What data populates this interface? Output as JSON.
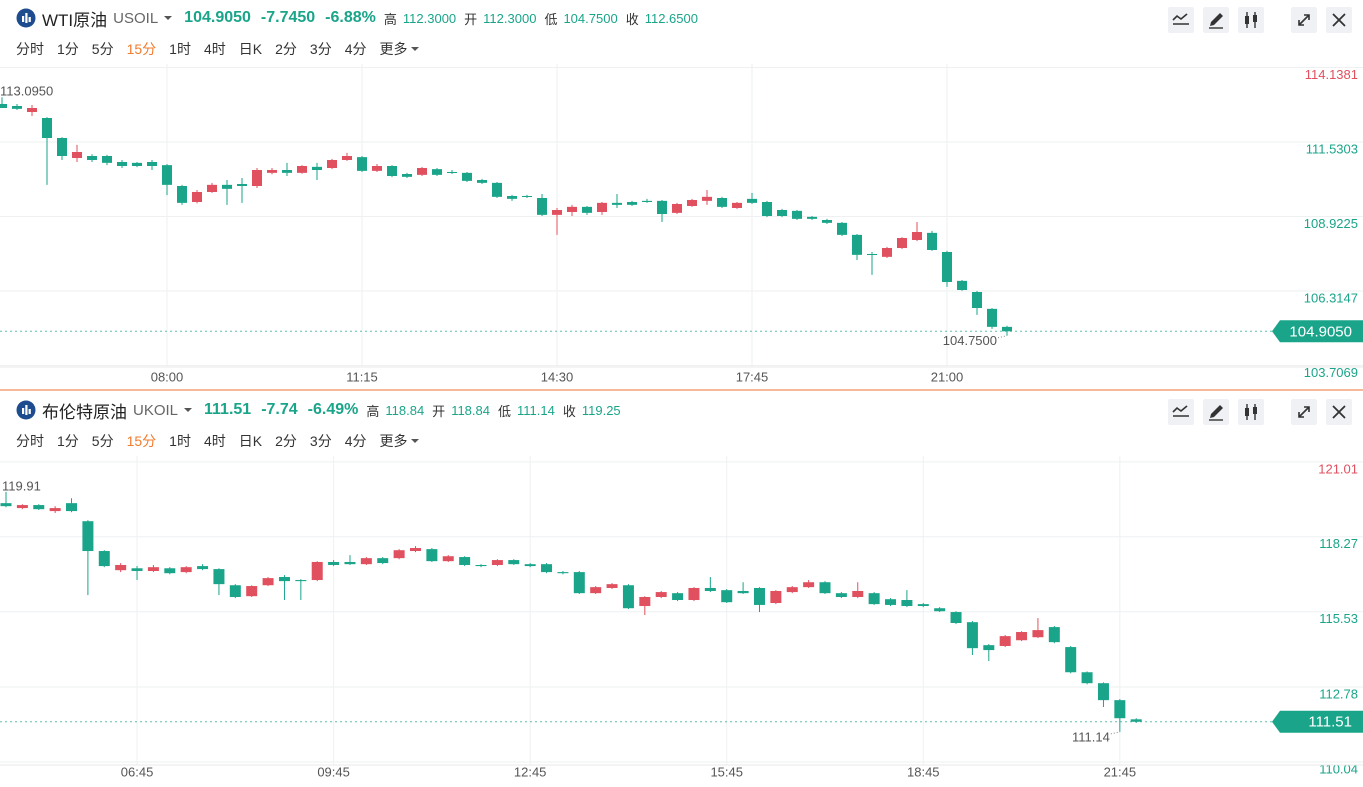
{
  "chart_data": [
    {
      "type": "candlestick",
      "title": "WTI原油",
      "symbol": "USOIL",
      "last_price": {
        "value": 104.905,
        "label": "104.9050"
      },
      "change": "-7.7450",
      "change_pct": "-6.88%",
      "stats": [
        {
          "name": "高",
          "value": 112.3,
          "label": "112.3000"
        },
        {
          "name": "开",
          "value": 112.3,
          "label": "112.3000"
        },
        {
          "name": "低",
          "value": 104.75,
          "label": "104.7500"
        },
        {
          "name": "收",
          "value": 112.65,
          "label": "112.6500"
        }
      ],
      "timeframes": [
        "分时",
        "1分",
        "5分",
        "15分",
        "1时",
        "4时",
        "日K",
        "2分",
        "3分",
        "4分",
        "更多"
      ],
      "active_timeframe": "15分",
      "up_color": "#e0505f",
      "down_color": "#1aa58a",
      "grid": true,
      "ylim": [
        103.655,
        114.26
      ],
      "yticks": [
        103.7069,
        106.3147,
        108.9225,
        111.5303,
        114.1381
      ],
      "max_label": {
        "value": 113.095,
        "label": "113.0950"
      },
      "min_label": {
        "value": 104.75,
        "label": "104.7500"
      },
      "categories": [
        null,
        null,
        null,
        null,
        null,
        null,
        null,
        null,
        null,
        null,
        null,
        "08:00",
        null,
        null,
        null,
        null,
        null,
        null,
        null,
        null,
        null,
        null,
        null,
        null,
        "11:15",
        null,
        null,
        null,
        null,
        null,
        null,
        null,
        null,
        null,
        null,
        null,
        null,
        "14:30",
        null,
        null,
        null,
        null,
        null,
        null,
        null,
        null,
        null,
        null,
        null,
        null,
        "17:45",
        null,
        null,
        null,
        null,
        null,
        null,
        null,
        null,
        null,
        null,
        null,
        null,
        "21:00",
        null,
        null,
        null,
        null
      ],
      "open": [
        112.86,
        112.79,
        112.58,
        112.37,
        111.67,
        110.97,
        111.04,
        111.04,
        110.83,
        110.8,
        110.83,
        110.72,
        109.99,
        109.43,
        109.78,
        110.03,
        110.06,
        109.99,
        110.45,
        110.55,
        110.45,
        110.66,
        110.62,
        110.9,
        111.0,
        110.52,
        110.69,
        110.41,
        110.38,
        110.58,
        110.48,
        110.45,
        110.2,
        110.1,
        109.64,
        109.64,
        109.57,
        108.98,
        109.08,
        109.26,
        109.08,
        109.4,
        109.43,
        109.47,
        109.47,
        109.05,
        109.29,
        109.47,
        109.57,
        109.22,
        109.54,
        109.43,
        109.15,
        109.12,
        108.91,
        108.8,
        108.7,
        108.28,
        107.61,
        107.51,
        107.82,
        108.1,
        108.35,
        107.68,
        106.67,
        106.28,
        105.69,
        105.06
      ],
      "high": [
        113.095,
        112.86,
        112.825,
        112.4,
        111.7,
        111.43,
        111.1,
        111.08,
        110.9,
        110.83,
        110.9,
        110.76,
        110.03,
        109.85,
        110.1,
        110.2,
        110.27,
        110.62,
        110.62,
        110.8,
        110.72,
        110.8,
        110.94,
        111.15,
        111.04,
        110.76,
        110.72,
        110.45,
        110.66,
        110.62,
        110.55,
        110.48,
        110.24,
        110.13,
        109.68,
        109.68,
        109.71,
        109.22,
        109.33,
        109.29,
        109.43,
        109.71,
        109.47,
        109.54,
        109.5,
        109.4,
        109.54,
        109.85,
        109.61,
        109.43,
        109.75,
        109.47,
        109.19,
        109.15,
        108.94,
        108.84,
        108.73,
        108.31,
        107.68,
        107.86,
        108.2,
        108.73,
        108.42,
        107.72,
        106.7,
        106.32,
        105.72,
        105.1
      ],
      "low": [
        112.72,
        112.65,
        112.44,
        110.03,
        110.9,
        110.83,
        110.83,
        110.72,
        110.62,
        110.65,
        110.55,
        109.67,
        109.33,
        109.38,
        109.75,
        109.33,
        109.4,
        109.92,
        110.4,
        110.34,
        110.42,
        110.2,
        110.58,
        110.87,
        110.48,
        110.48,
        110.3,
        110.27,
        110.34,
        110.34,
        110.41,
        110.13,
        110.06,
        109.57,
        109.47,
        109.57,
        108.94,
        108.28,
        108.94,
        108.98,
        108.98,
        109.22,
        109.29,
        109.4,
        108.73,
        109.01,
        109.26,
        109.33,
        109.22,
        109.19,
        109.36,
        108.9,
        108.9,
        108.8,
        108.8,
        108.66,
        108.24,
        107.4,
        106.88,
        107.47,
        107.78,
        108.06,
        107.72,
        106.46,
        106.32,
        105.48,
        104.99,
        104.75
      ],
      "close": [
        112.72,
        112.69,
        112.72,
        111.67,
        111.04,
        111.18,
        110.9,
        110.8,
        110.69,
        110.69,
        110.69,
        110.03,
        109.4,
        109.78,
        110.03,
        109.89,
        109.99,
        110.55,
        110.55,
        110.45,
        110.69,
        110.55,
        110.9,
        111.04,
        110.52,
        110.69,
        110.34,
        110.31,
        110.62,
        110.38,
        110.45,
        110.17,
        110.1,
        109.61,
        109.54,
        109.61,
        108.98,
        109.15,
        109.26,
        109.05,
        109.4,
        109.33,
        109.33,
        109.43,
        109.01,
        109.36,
        109.5,
        109.61,
        109.26,
        109.4,
        109.4,
        108.94,
        108.94,
        108.84,
        108.84,
        108.7,
        108.28,
        107.58,
        107.58,
        107.82,
        108.17,
        108.38,
        107.75,
        106.63,
        106.35,
        105.72,
        105.06,
        104.905
      ]
    },
    {
      "type": "candlestick",
      "title": "布伦特原油",
      "symbol": "UKOIL",
      "last_price": 111.51,
      "change": "-7.74",
      "change_pct": "-6.49%",
      "stats": [
        {
          "name": "高",
          "value": 118.84
        },
        {
          "name": "开",
          "value": 118.84
        },
        {
          "name": "低",
          "value": 111.14
        },
        {
          "name": "收",
          "value": 119.25
        }
      ],
      "timeframes": [
        "分时",
        "1分",
        "5分",
        "15分",
        "1时",
        "4时",
        "日K",
        "2分",
        "3分",
        "4分",
        "更多"
      ],
      "active_timeframe": "15分",
      "up_color": "#e0505f",
      "down_color": "#1aa58a",
      "grid": true,
      "ylim": [
        109.93,
        121.15
      ],
      "yticks": [
        110.04,
        112.78,
        115.53,
        118.27,
        121.01
      ],
      "max_label": 119.91,
      "min_label": 111.14,
      "categories": [
        null,
        null,
        null,
        null,
        null,
        null,
        null,
        null,
        "06:45",
        null,
        null,
        null,
        null,
        null,
        null,
        null,
        null,
        null,
        null,
        null,
        "09:45",
        null,
        null,
        null,
        null,
        null,
        null,
        null,
        null,
        null,
        null,
        null,
        "12:45",
        null,
        null,
        null,
        null,
        null,
        null,
        null,
        null,
        null,
        null,
        null,
        "15:45",
        null,
        null,
        null,
        null,
        null,
        null,
        null,
        null,
        null,
        null,
        null,
        "18:45",
        null,
        null,
        null,
        null,
        null,
        null,
        null,
        null,
        null,
        null,
        null,
        "21:45",
        null
      ],
      "open": [
        119.5,
        119.32,
        119.43,
        119.21,
        119.5,
        118.84,
        117.75,
        117.05,
        117.12,
        117.02,
        117.12,
        116.98,
        117.2,
        117.09,
        116.5,
        116.1,
        116.5,
        116.8,
        116.69,
        116.69,
        117.35,
        117.35,
        117.27,
        117.49,
        117.49,
        117.75,
        117.82,
        117.38,
        117.53,
        117.24,
        117.24,
        117.42,
        117.27,
        117.27,
        116.98,
        116.98,
        116.21,
        116.4,
        116.5,
        115.74,
        116.07,
        116.21,
        115.96,
        116.4,
        116.32,
        116.29,
        116.4,
        115.85,
        116.25,
        116.43,
        116.61,
        116.21,
        116.07,
        116.21,
        115.99,
        115.96,
        115.81,
        115.66,
        115.52,
        115.15,
        114.31,
        114.28,
        114.49,
        114.6,
        114.97,
        114.24,
        113.32,
        112.92,
        112.3,
        111.6
      ],
      "high": [
        119.91,
        119.46,
        119.46,
        119.39,
        119.68,
        118.88,
        117.78,
        117.31,
        117.2,
        117.24,
        117.16,
        117.2,
        117.27,
        117.12,
        116.54,
        116.5,
        116.8,
        116.87,
        116.72,
        117.38,
        117.42,
        117.6,
        117.53,
        117.53,
        117.82,
        117.93,
        117.86,
        117.6,
        117.56,
        117.27,
        117.45,
        117.45,
        117.31,
        117.31,
        117.02,
        117.02,
        116.47,
        116.58,
        116.54,
        116.1,
        116.29,
        116.25,
        116.43,
        116.8,
        116.36,
        116.61,
        116.43,
        116.32,
        116.47,
        116.69,
        116.65,
        116.25,
        116.61,
        116.25,
        116.03,
        116.32,
        115.85,
        115.7,
        115.55,
        115.19,
        114.35,
        114.68,
        114.82,
        115.3,
        115.01,
        114.28,
        113.35,
        112.95,
        112.34,
        111.64
      ],
      "low": [
        119.35,
        119.28,
        119.25,
        119.14,
        119.17,
        116.14,
        117.16,
        116.98,
        116.69,
        116.98,
        116.9,
        116.94,
        117.05,
        116.14,
        116.03,
        116.07,
        116.47,
        115.96,
        115.96,
        116.65,
        117.2,
        117.24,
        117.24,
        117.27,
        117.45,
        117.71,
        117.35,
        117.35,
        117.2,
        117.16,
        117.2,
        117.24,
        117.16,
        116.94,
        116.9,
        116.18,
        116.18,
        116.36,
        115.63,
        115.41,
        116.03,
        115.92,
        115.92,
        116.25,
        115.85,
        116.18,
        115.52,
        115.81,
        116.21,
        116.4,
        116.18,
        116.03,
        116.03,
        115.78,
        115.74,
        115.7,
        115.7,
        115.52,
        115.08,
        113.95,
        113.73,
        114.24,
        114.46,
        114.57,
        114.38,
        113.28,
        112.88,
        112.05,
        111.14,
        111.47
      ],
      "close": [
        119.39,
        119.43,
        119.28,
        119.32,
        119.21,
        117.75,
        117.2,
        117.24,
        117.02,
        117.16,
        116.94,
        117.16,
        117.09,
        116.54,
        116.07,
        116.47,
        116.76,
        116.65,
        116.65,
        117.35,
        117.24,
        117.27,
        117.49,
        117.31,
        117.78,
        117.86,
        117.38,
        117.56,
        117.24,
        117.2,
        117.42,
        117.27,
        117.2,
        116.98,
        116.94,
        116.21,
        116.43,
        116.54,
        115.66,
        116.07,
        116.25,
        115.96,
        116.4,
        116.29,
        115.88,
        116.21,
        115.78,
        116.29,
        116.43,
        116.61,
        116.21,
        116.07,
        116.29,
        115.81,
        115.78,
        115.74,
        115.74,
        115.55,
        115.12,
        114.2,
        114.13,
        114.64,
        114.79,
        114.86,
        114.42,
        113.32,
        112.92,
        112.3,
        111.64,
        111.51
      ]
    }
  ]
}
